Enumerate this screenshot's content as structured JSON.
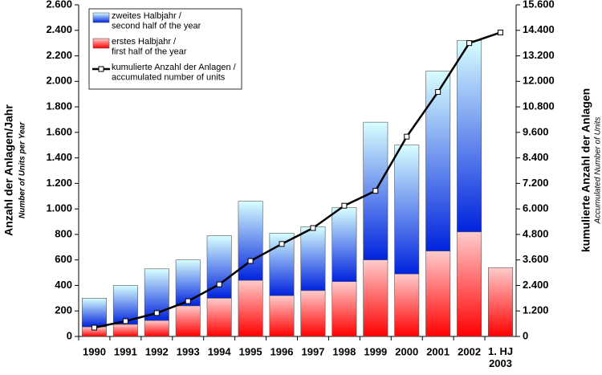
{
  "chart_data": {
    "type": "bar",
    "y_label": "Anzahl der Anlagen/Jahr",
    "y_sublabel": "Number of Units per Year",
    "y2_label": "kumulierte Anzahl der Anlagen",
    "y2_sublabel": "Accumulated Number of Units",
    "categories": [
      "1990",
      "1991",
      "1992",
      "1993",
      "1994",
      "1995",
      "1996",
      "1997",
      "1998",
      "1999",
      "2000",
      "2001",
      "2002",
      "1. HJ\n2003"
    ],
    "series": [
      {
        "name": "erstes Halbjahr /\nfirst half of the year",
        "color": "#ff0000",
        "values": [
          75,
          95,
          125,
          240,
          300,
          440,
          320,
          360,
          430,
          600,
          490,
          670,
          820,
          540
        ]
      },
      {
        "name": "zweites Halbjahr /\nsecond half of the year",
        "color": "#0022dd",
        "values": [
          225,
          305,
          405,
          360,
          490,
          620,
          490,
          500,
          580,
          1080,
          1010,
          1410,
          1500,
          null
        ]
      },
      {
        "name": "kumulierte Anzahl der Anlagen /\naccumulated number of units",
        "color": "#000000",
        "axis": "y2",
        "values": [
          415,
          720,
          1100,
          1660,
          2450,
          3550,
          4350,
          5100,
          6150,
          6850,
          9400,
          11500,
          13800,
          14300
        ]
      }
    ],
    "ylim": [
      0,
      2600
    ],
    "yticks": [
      0,
      200,
      400,
      600,
      800,
      {
        "value": 1000,
        "label": "1.000"
      },
      {
        "value": 1200,
        "label": "1.200"
      },
      {
        "value": 1400,
        "label": "1.400"
      },
      {
        "value": 1600,
        "label": "1.600"
      },
      {
        "value": 1800,
        "label": "1.800"
      },
      {
        "value": 2000,
        "label": "2.000"
      },
      {
        "value": 2200,
        "label": "2.200"
      },
      {
        "value": 2400,
        "label": "2.400"
      },
      {
        "value": 2600,
        "label": "2.600"
      }
    ],
    "y2lim": [
      0,
      15600
    ],
    "y2ticks": [
      0,
      {
        "value": 1200,
        "label": "1.200"
      },
      {
        "value": 2400,
        "label": "2.400"
      },
      {
        "value": 3600,
        "label": "3.600"
      },
      {
        "value": 4800,
        "label": "4.800"
      },
      {
        "value": 6000,
        "label": "6.000"
      },
      {
        "value": 7200,
        "label": "7.200"
      },
      {
        "value": 8400,
        "label": "8.400"
      },
      {
        "value": 9600,
        "label": "9.600"
      },
      {
        "value": 10800,
        "label": "10.800"
      },
      {
        "value": 12000,
        "label": "12.000"
      },
      {
        "value": 13200,
        "label": "13.200"
      },
      {
        "value": 14400,
        "label": "14.400"
      },
      {
        "value": 15600,
        "label": "15.600"
      }
    ],
    "grid": false
  }
}
